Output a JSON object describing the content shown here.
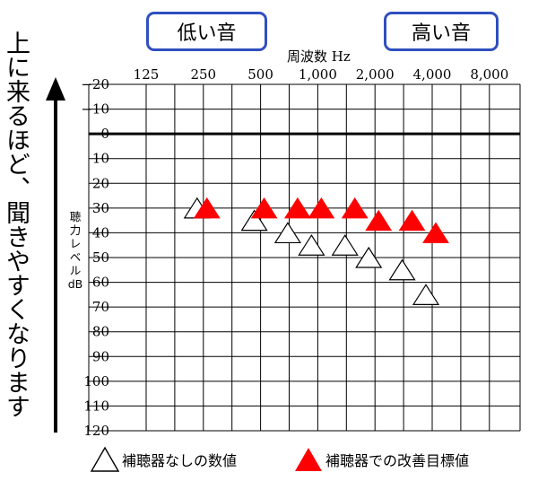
{
  "caption": "上に来るほど、聞きやすくなります",
  "range_labels": {
    "low": "低い音",
    "high": "高い音"
  },
  "chart_data": {
    "type": "scatter",
    "title": "",
    "xlabel": "周波数 Hz",
    "ylabel": "聴力レベル dB",
    "x_ticks": [
      "125",
      "250",
      "500",
      "1,000",
      "2,000",
      "4,000",
      "8,000"
    ],
    "x_scale": "log2 (octaves), 125–8,000 Hz",
    "y_ticks": [
      "−20",
      "−10",
      "0",
      "10",
      "20",
      "30",
      "40",
      "50",
      "60",
      "70",
      "80",
      "90",
      "100",
      "110",
      "120"
    ],
    "ylim": [
      -20,
      120
    ],
    "y_inverted": true,
    "grid": true,
    "series": [
      {
        "name": "補聴器なしの数値",
        "marker": "open-triangle",
        "color": "#000000",
        "points": [
          {
            "x": 250,
            "y": 30
          },
          {
            "x": 500,
            "y": 35
          },
          {
            "x": 750,
            "y": 40
          },
          {
            "x": 1000,
            "y": 45
          },
          {
            "x": 1500,
            "y": 45
          },
          {
            "x": 2000,
            "y": 50
          },
          {
            "x": 3000,
            "y": 55
          },
          {
            "x": 4000,
            "y": 65
          }
        ]
      },
      {
        "name": "補聴器での改善目標値",
        "marker": "filled-triangle",
        "color": "#ff0000",
        "points": [
          {
            "x": 250,
            "y": 30
          },
          {
            "x": 500,
            "y": 30
          },
          {
            "x": 750,
            "y": 30
          },
          {
            "x": 1000,
            "y": 30
          },
          {
            "x": 1500,
            "y": 30
          },
          {
            "x": 2000,
            "y": 35
          },
          {
            "x": 3000,
            "y": 35
          },
          {
            "x": 4000,
            "y": 40
          }
        ]
      }
    ]
  }
}
